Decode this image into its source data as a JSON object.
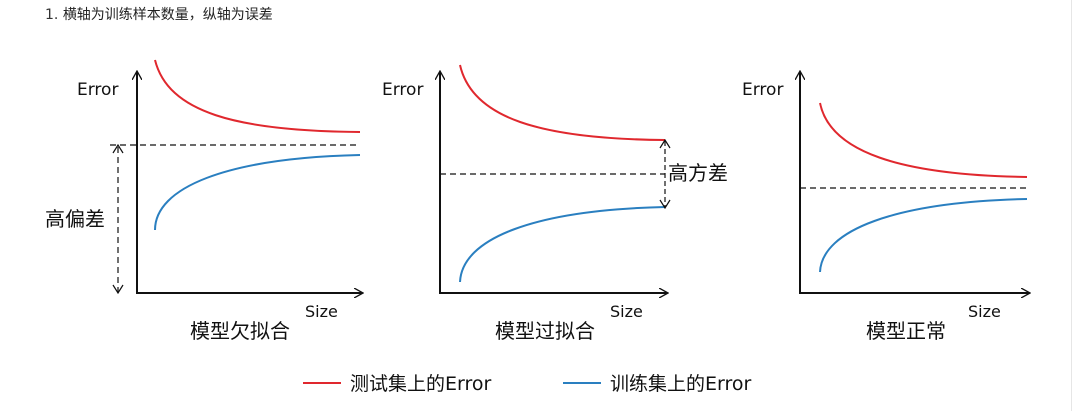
{
  "heading": {
    "number": "1.",
    "text": "横轴为训练样本数量，纵轴为误差"
  },
  "colors": {
    "test_error": "#e0282e",
    "train_error": "#2a7fc0",
    "axis": "#111111"
  },
  "panels": [
    {
      "y_axis": "Error",
      "x_axis": "Size",
      "title": "模型欠拟合",
      "annotation": "高偏差"
    },
    {
      "y_axis": "Error",
      "x_axis": "Size",
      "title": "模型过拟合",
      "annotation": "高方差"
    },
    {
      "y_axis": "Error",
      "x_axis": "Size",
      "title": "模型正常"
    }
  ],
  "legend": [
    {
      "label": "测试集上的Error",
      "color": "#e0282e"
    },
    {
      "label": "训练集上的Error",
      "color": "#2a7fc0"
    }
  ]
}
